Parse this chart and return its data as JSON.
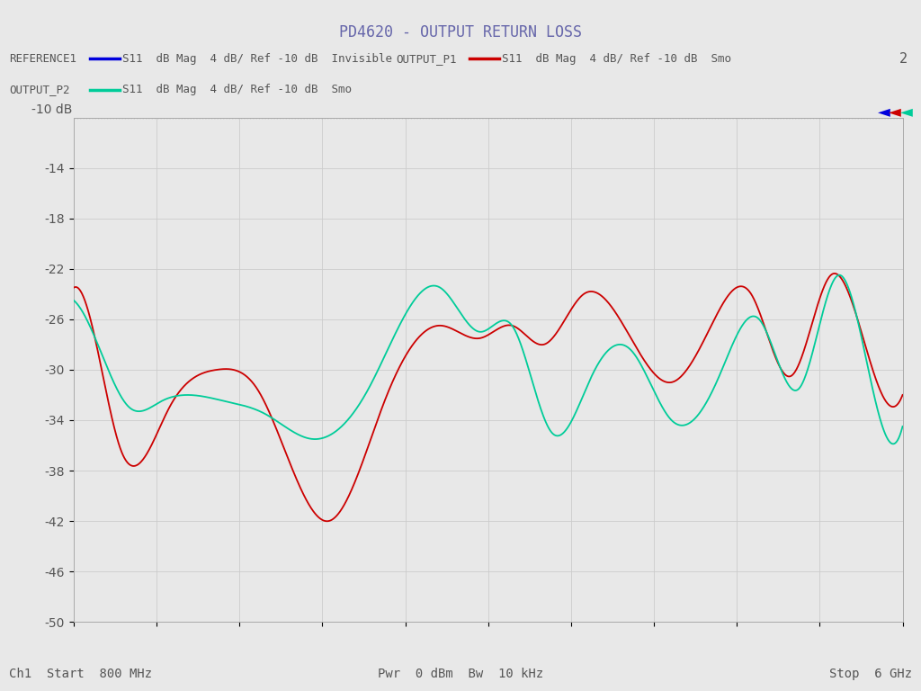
{
  "title": "PD4620 - OUTPUT RETURN LOSS",
  "title_color": "#6666aa",
  "bg_color": "#e8e8e8",
  "plot_bg_color": "#e8e8e8",
  "ref_line_y": -10,
  "ref_line_label": "-10 dB",
  "ylim": [
    -50,
    -10
  ],
  "yticks": [
    -14,
    -18,
    -22,
    -26,
    -30,
    -34,
    -38,
    -42,
    -46,
    -50
  ],
  "xstart_ghz": 0.8,
  "xstop_ghz": 6.0,
  "xlabel_start": "Ch1  Start  800 MHz",
  "xlabel_mid": "Pwr  0 dBm  Bw  10 kHz",
  "xlabel_stop": "Stop  6 GHz",
  "legend": [
    {
      "label": "REFERENCE1",
      "color": "#0000dd",
      "text": "S11  dB Mag  4 dB/ Ref -10 dB  Invisible"
    },
    {
      "label": "OUTPUT_P1",
      "color": "#cc0000",
      "text": "S11  dB Mag  4 dB/ Ref -10 dB  Smo"
    },
    {
      "label": "OUTPUT_P2",
      "color": "#00cc99",
      "text": "S11  dB Mag  4 dB/ Ref -10 dB  Smo"
    }
  ],
  "legend2_label": "2",
  "arrow_colors": [
    "#0000dd",
    "#cc0000",
    "#00cc99"
  ],
  "grid_color": "#cccccc",
  "red_keypoints_f": [
    0.8,
    1.0,
    1.1,
    1.4,
    1.7,
    1.95,
    2.4,
    2.75,
    3.1,
    3.35,
    3.55,
    3.75,
    4.0,
    4.25,
    4.55,
    4.8,
    5.05,
    5.3,
    5.55,
    5.8,
    6.0
  ],
  "red_keypoints_db": [
    -23.5,
    -31.5,
    -36.5,
    -33.0,
    -30.0,
    -31.5,
    -42.0,
    -32.5,
    -26.5,
    -27.5,
    -26.5,
    -28.0,
    -24.0,
    -26.5,
    -31.0,
    -26.5,
    -24.0,
    -30.5,
    -22.5,
    -29.5,
    -32.0
  ],
  "green_keypoints_f": [
    0.8,
    1.0,
    1.15,
    1.35,
    1.75,
    2.0,
    2.3,
    2.65,
    3.1,
    3.35,
    3.55,
    3.8,
    4.05,
    4.3,
    4.55,
    4.85,
    5.1,
    5.35,
    5.6,
    5.85,
    6.0
  ],
  "green_keypoints_db": [
    -24.5,
    -29.5,
    -33.0,
    -32.5,
    -32.5,
    -33.5,
    -35.5,
    -31.5,
    -23.5,
    -27.0,
    -26.5,
    -35.0,
    -30.5,
    -28.5,
    -34.0,
    -30.5,
    -26.0,
    -31.5,
    -22.5,
    -33.5,
    -34.5
  ]
}
